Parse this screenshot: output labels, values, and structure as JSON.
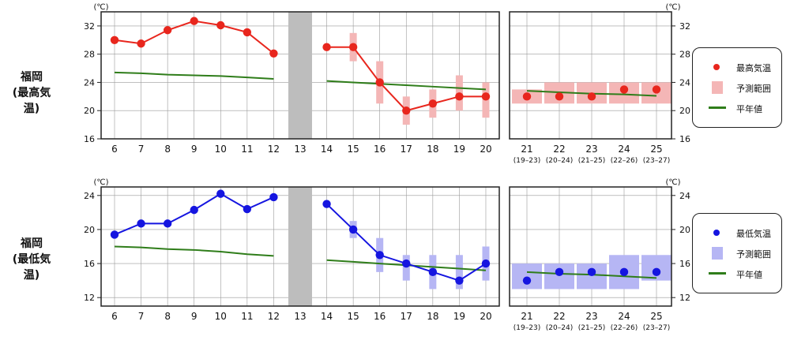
{
  "rows": [
    {
      "station": "福岡",
      "kind": "(最高気温)"
    },
    {
      "station": "福岡",
      "kind": "(最低気温)"
    }
  ],
  "unit": "(℃)",
  "colors": {
    "max": "#e8261d",
    "max_range": "#f4b6b6",
    "min": "#1515e0",
    "min_range": "#b6b6f4",
    "normal": "#2f7d1a",
    "gap": "#bdbdbd",
    "grid": "#9a9a9a"
  },
  "legends": [
    {
      "marker_label": "最高気温",
      "range_label": "予測範囲",
      "normal_label": "平年値"
    },
    {
      "marker_label": "最低気温",
      "range_label": "予測範囲",
      "normal_label": "平年値"
    }
  ],
  "chart_data": [
    {
      "type": "line",
      "title": "福岡 (最高気温)",
      "ylabel": "(℃)",
      "ylim": [
        16,
        34
      ],
      "yticks": [
        16,
        20,
        24,
        28,
        32
      ],
      "x_labels": [
        "6",
        "7",
        "8",
        "9",
        "10",
        "11",
        "12",
        "13",
        "14",
        "15",
        "16",
        "17",
        "18",
        "19",
        "20"
      ],
      "x_labels_2wk": [
        "21",
        "22",
        "23",
        "24",
        "25"
      ],
      "x_sublabels_2wk": [
        "(19–23)",
        "(20–24)",
        "(21–25)",
        "(22–26)",
        "(23–27)"
      ],
      "missing_day": "13",
      "observed": {
        "x": [
          "6",
          "7",
          "8",
          "9",
          "10",
          "11",
          "12"
        ],
        "values": [
          30,
          29.5,
          31.4,
          32.7,
          32.1,
          31.1,
          28.1
        ]
      },
      "forecast": {
        "x": [
          "14",
          "15",
          "16",
          "17",
          "18",
          "19",
          "20"
        ],
        "values": [
          29,
          29,
          24,
          20,
          21,
          22,
          22
        ],
        "range_low": [
          null,
          27,
          21,
          18,
          19,
          20,
          19
        ],
        "range_high": [
          null,
          31,
          27,
          22,
          23,
          25,
          24
        ]
      },
      "forecast_2wk": {
        "x": [
          "21",
          "22",
          "23",
          "24",
          "25"
        ],
        "values": [
          22,
          22,
          22,
          23,
          23
        ],
        "range_low": [
          21,
          21,
          21,
          21,
          21
        ],
        "range_high": [
          23,
          24,
          24,
          24,
          24
        ]
      },
      "normal_1": {
        "x": [
          "6",
          "7",
          "8",
          "9",
          "10",
          "11",
          "12"
        ],
        "values": [
          25.4,
          25.3,
          25.1,
          25,
          24.9,
          24.7,
          24.5
        ]
      },
      "normal_2": {
        "x": [
          "14",
          "15",
          "16",
          "17",
          "18",
          "19",
          "20"
        ],
        "values": [
          24.2,
          24,
          23.8,
          23.6,
          23.4,
          23.2,
          23
        ]
      },
      "normal_3": {
        "x": [
          "21",
          "22",
          "23",
          "24",
          "25"
        ],
        "values": [
          22.8,
          22.6,
          22.4,
          22.3,
          22.1
        ]
      }
    },
    {
      "type": "line",
      "title": "福岡 (最低気温)",
      "ylabel": "(℃)",
      "ylim": [
        11,
        25
      ],
      "yticks": [
        12,
        16,
        20,
        24
      ],
      "x_labels": [
        "6",
        "7",
        "8",
        "9",
        "10",
        "11",
        "12",
        "13",
        "14",
        "15",
        "16",
        "17",
        "18",
        "19",
        "20"
      ],
      "x_labels_2wk": [
        "21",
        "22",
        "23",
        "24",
        "25"
      ],
      "x_sublabels_2wk": [
        "(19–23)",
        "(20–24)",
        "(21–25)",
        "(22–26)",
        "(23–27)"
      ],
      "missing_day": "13",
      "observed": {
        "x": [
          "6",
          "7",
          "8",
          "9",
          "10",
          "11",
          "12"
        ],
        "values": [
          19.4,
          20.7,
          20.7,
          22.3,
          24.2,
          22.4,
          23.8
        ]
      },
      "forecast": {
        "x": [
          "14",
          "15",
          "16",
          "17",
          "18",
          "19",
          "20"
        ],
        "values": [
          23,
          20,
          17,
          16,
          15,
          14,
          16
        ],
        "range_low": [
          null,
          19,
          15,
          14,
          13,
          13,
          14
        ],
        "range_high": [
          null,
          21,
          19,
          17,
          17,
          17,
          18
        ]
      },
      "forecast_2wk": {
        "x": [
          "21",
          "22",
          "23",
          "24",
          "25"
        ],
        "values": [
          14,
          15,
          15,
          15,
          15
        ],
        "range_low": [
          13,
          13,
          13,
          13,
          14
        ],
        "range_high": [
          16,
          16,
          16,
          17,
          17
        ]
      },
      "normal_1": {
        "x": [
          "6",
          "7",
          "8",
          "9",
          "10",
          "11",
          "12"
        ],
        "values": [
          18,
          17.9,
          17.7,
          17.6,
          17.4,
          17.1,
          16.9
        ]
      },
      "normal_2": {
        "x": [
          "14",
          "15",
          "16",
          "17",
          "18",
          "19",
          "20"
        ],
        "values": [
          16.4,
          16.2,
          16,
          15.8,
          15.6,
          15.4,
          15.2
        ]
      },
      "normal_3": {
        "x": [
          "21",
          "22",
          "23",
          "24",
          "25"
        ],
        "values": [
          15,
          14.8,
          14.7,
          14.5,
          14.3
        ]
      }
    }
  ]
}
